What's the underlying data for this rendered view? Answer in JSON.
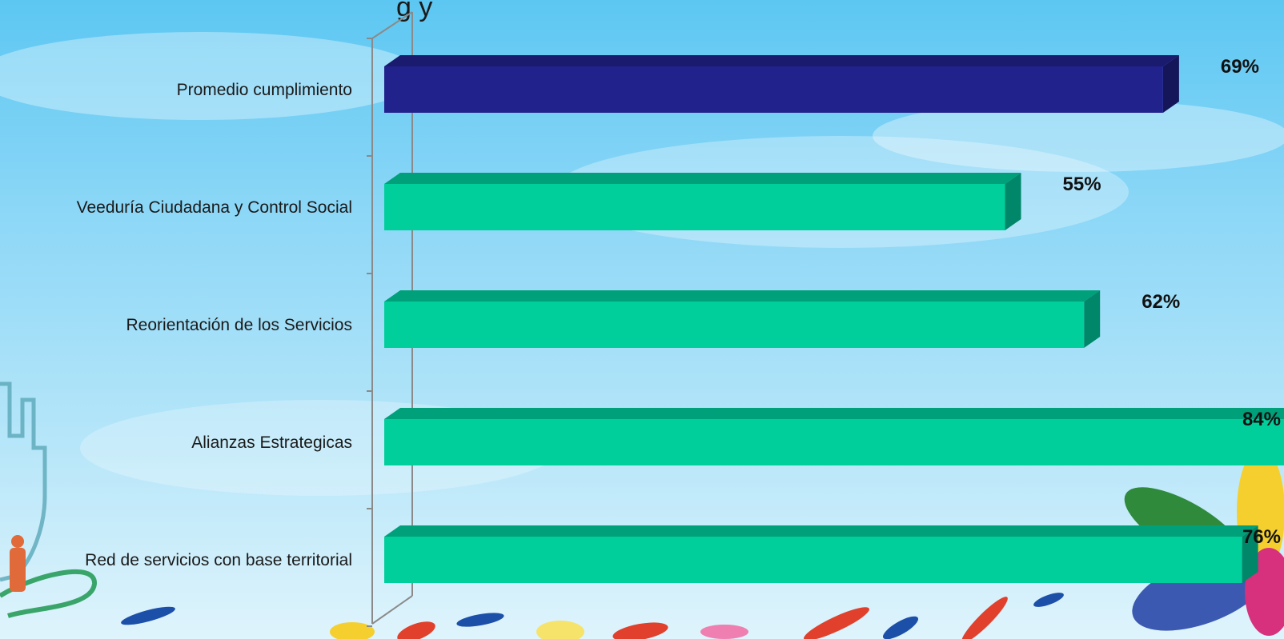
{
  "chart_data": {
    "type": "bar",
    "orientation": "horizontal",
    "title_fragment": "g          y",
    "categories": [
      "Promedio  cumplimiento",
      "Veeduría Ciudadana y Control Social",
      "Reorientación de los Servicios",
      "Alianzas Estrategicas",
      "Red de servicios con base territorial"
    ],
    "values": [
      69,
      55,
      62,
      84,
      76
    ],
    "value_labels": [
      "69%",
      "55%",
      "62%",
      "84%",
      "76%"
    ],
    "unit": "%",
    "xlim": [
      0,
      100
    ],
    "grid": false,
    "legend": "none",
    "colors": {
      "highlight_front": "#22228c",
      "highlight_top": "#1a1a6e",
      "highlight_side": "#15155a",
      "bar_front": "#00cf9c",
      "bar_top": "#00a07a",
      "bar_side": "#00876a",
      "axis": "#8a8a8a"
    },
    "highlight_index": 0
  }
}
